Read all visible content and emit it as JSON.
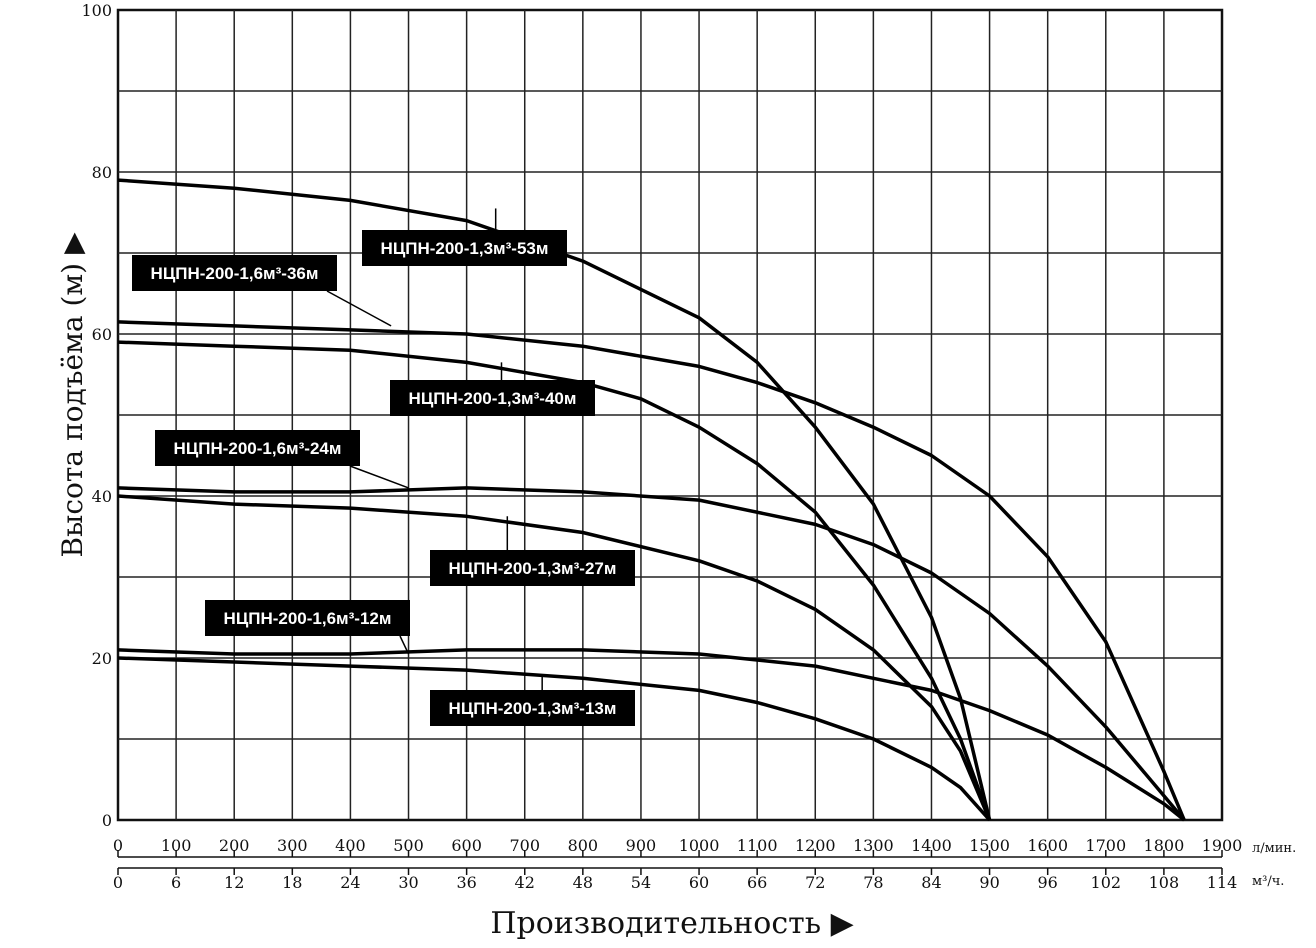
{
  "chart_data": {
    "type": "line",
    "xlabel": "Производительность ▶",
    "ylabel": "Высота подъёма (м) ▶",
    "x_unit_primary": "л/мин.",
    "x_unit_secondary": "м³/ч.",
    "xlim": [
      0,
      1900
    ],
    "ylim": [
      0,
      100
    ],
    "x_ticks": [
      0,
      100,
      200,
      300,
      400,
      500,
      600,
      700,
      800,
      900,
      1000,
      1100,
      1200,
      1300,
      1400,
      1500,
      1600,
      1700,
      1800,
      1900
    ],
    "x_ticks_secondary": [
      "0",
      "6",
      "12",
      "18",
      "24",
      "30",
      "36",
      "42",
      "48",
      "54",
      "60",
      "66",
      "72",
      "78",
      "84",
      "90",
      "96",
      "102",
      "108",
      "114"
    ],
    "y_ticks": [
      0,
      20,
      40,
      60,
      80,
      100
    ],
    "grid": true,
    "series": [
      {
        "name": "НЦПН-200-1,3м³-53м",
        "x": [
          0,
          200,
          400,
          600,
          800,
          1000,
          1100,
          1200,
          1300,
          1400,
          1450,
          1500
        ],
        "y": [
          79,
          78,
          76.5,
          74,
          69,
          62,
          56.5,
          48.5,
          39,
          25,
          15,
          0
        ]
      },
      {
        "name": "НЦПН-200-1,6м³-36м",
        "x": [
          0,
          200,
          400,
          600,
          800,
          1000,
          1100,
          1200,
          1300,
          1400,
          1500,
          1600,
          1700,
          1800,
          1835
        ],
        "y": [
          61.5,
          61,
          60.5,
          60,
          58.5,
          56,
          54,
          51.5,
          48.5,
          45,
          40,
          32.5,
          22,
          6,
          0
        ]
      },
      {
        "name": "НЦПН-200-1,3м³-40м",
        "x": [
          0,
          200,
          400,
          600,
          800,
          900,
          1000,
          1100,
          1200,
          1300,
          1400,
          1450,
          1500
        ],
        "y": [
          59,
          58.5,
          58,
          56.5,
          54,
          52,
          48.5,
          44,
          38,
          29,
          17.5,
          10,
          0
        ]
      },
      {
        "name": "НЦПН-200-1,6м³-24м",
        "x": [
          0,
          200,
          400,
          600,
          800,
          1000,
          1200,
          1300,
          1400,
          1500,
          1600,
          1700,
          1800,
          1835
        ],
        "y": [
          41,
          40.5,
          40.5,
          41,
          40.5,
          39.5,
          36.5,
          34,
          30.5,
          25.5,
          19,
          11.5,
          3,
          0
        ]
      },
      {
        "name": "НЦПН-200-1,3м³-27м",
        "x": [
          0,
          200,
          400,
          600,
          800,
          1000,
          1100,
          1200,
          1300,
          1400,
          1450,
          1500
        ],
        "y": [
          40,
          39,
          38.5,
          37.5,
          35.5,
          32,
          29.5,
          26,
          21,
          14,
          8.5,
          0
        ]
      },
      {
        "name": "НЦПН-200-1,6м³-12м",
        "x": [
          0,
          200,
          400,
          600,
          800,
          1000,
          1200,
          1300,
          1400,
          1500,
          1600,
          1700,
          1800,
          1835
        ],
        "y": [
          21,
          20.5,
          20.5,
          21,
          21,
          20.5,
          19,
          17.5,
          16,
          13.5,
          10.5,
          6.5,
          2,
          0
        ]
      },
      {
        "name": "НЦПН-200-1,3м³-13м",
        "x": [
          0,
          200,
          400,
          600,
          800,
          1000,
          1100,
          1200,
          1300,
          1400,
          1450,
          1500
        ],
        "y": [
          20,
          19.5,
          19,
          18.5,
          17.5,
          16,
          14.5,
          12.5,
          10,
          6.5,
          4,
          0
        ]
      }
    ],
    "labels": [
      {
        "text": "НЦПН-200-1,3м³-53м",
        "series": 0,
        "pointer": [
          650,
          75.5
        ]
      },
      {
        "text": "НЦПН-200-1,6м³-36м",
        "series": 1,
        "pointer": [
          470,
          61
        ]
      },
      {
        "text": "НЦПН-200-1,3м³-40м",
        "series": 2,
        "pointer": [
          660,
          56.5
        ]
      },
      {
        "text": "НЦПН-200-1,6м³-24м",
        "series": 3,
        "pointer": [
          500,
          41
        ]
      },
      {
        "text": "НЦПН-200-1,3м³-27м",
        "series": 4,
        "pointer": [
          670,
          37.5
        ]
      },
      {
        "text": "НЦПН-200-1,6м³-12м",
        "series": 5,
        "pointer": [
          500,
          20.5
        ]
      },
      {
        "text": "НЦПН-200-1,3м³-13м",
        "series": 6,
        "pointer": [
          730,
          18
        ]
      }
    ]
  }
}
